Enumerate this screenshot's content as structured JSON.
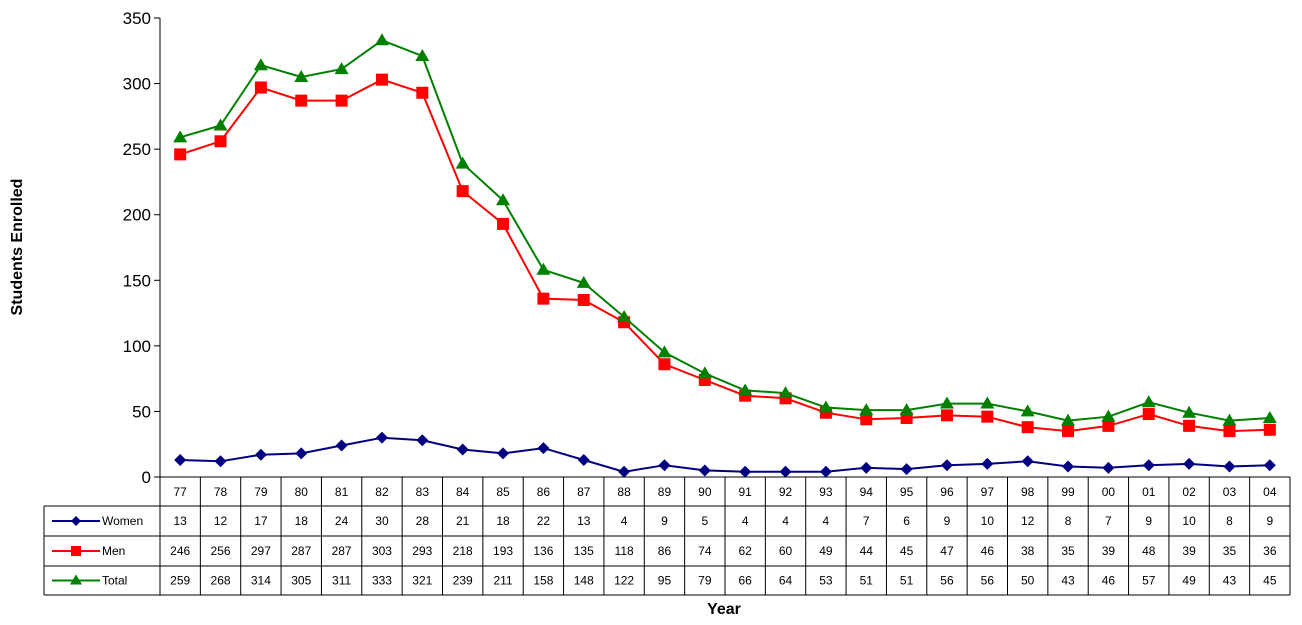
{
  "chart_data": {
    "type": "line",
    "xlabel": "Year",
    "ylabel": "Students Enrolled",
    "ylim": [
      0,
      350
    ],
    "yticks": [
      0,
      50,
      100,
      150,
      200,
      250,
      300,
      350
    ],
    "categories": [
      "77",
      "78",
      "79",
      "80",
      "81",
      "82",
      "83",
      "84",
      "85",
      "86",
      "87",
      "88",
      "89",
      "90",
      "91",
      "92",
      "93",
      "94",
      "95",
      "96",
      "97",
      "98",
      "99",
      "00",
      "01",
      "02",
      "03",
      "04"
    ],
    "series": [
      {
        "name": "Women",
        "color": "#000080",
        "marker": "diamond",
        "values": [
          13,
          12,
          17,
          18,
          24,
          30,
          28,
          21,
          18,
          22,
          13,
          4,
          9,
          5,
          4,
          4,
          4,
          7,
          6,
          9,
          10,
          12,
          8,
          7,
          9,
          10,
          8,
          9
        ]
      },
      {
        "name": "Men",
        "color": "#FF0000",
        "marker": "square",
        "values": [
          246,
          256,
          297,
          287,
          287,
          303,
          293,
          218,
          193,
          136,
          135,
          118,
          86,
          74,
          62,
          60,
          49,
          44,
          45,
          47,
          46,
          38,
          35,
          39,
          48,
          39,
          35,
          36
        ]
      },
      {
        "name": "Total",
        "color": "#008000",
        "marker": "triangle",
        "values": [
          259,
          268,
          314,
          305,
          311,
          333,
          321,
          239,
          211,
          158,
          148,
          122,
          95,
          79,
          66,
          64,
          53,
          51,
          51,
          56,
          56,
          50,
          43,
          46,
          57,
          49,
          43,
          45
        ]
      }
    ],
    "grid": false,
    "legend": "data-table"
  }
}
